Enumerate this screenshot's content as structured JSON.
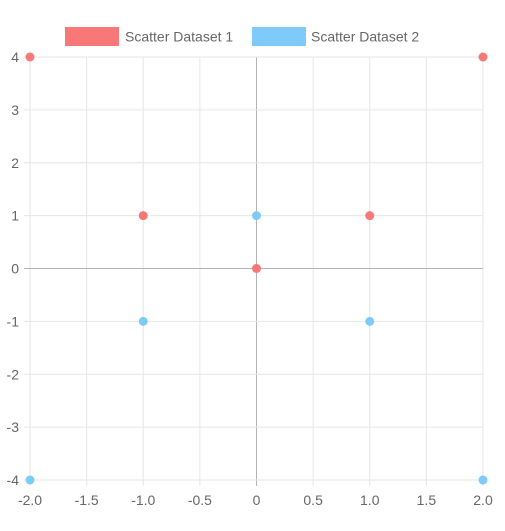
{
  "chart_data": {
    "type": "scatter",
    "legend_position": "top",
    "grid": true,
    "xlim": [
      -2,
      2
    ],
    "ylim": [
      -4,
      4
    ],
    "x_ticks": [
      "-2.0",
      "-1.5",
      "-1.0",
      "-0.5",
      "0",
      "0.5",
      "1.0",
      "1.5",
      "2.0"
    ],
    "y_ticks": [
      "4",
      "3",
      "2",
      "1",
      "0",
      "-1",
      "-2",
      "-3",
      "-4"
    ],
    "series": [
      {
        "name": "Scatter Dataset 1",
        "color": "#f87777",
        "points": [
          {
            "x": -2,
            "y": 4
          },
          {
            "x": -1,
            "y": 1
          },
          {
            "x": 0,
            "y": 0
          },
          {
            "x": 1,
            "y": 1
          },
          {
            "x": 2,
            "y": 4
          }
        ]
      },
      {
        "name": "Scatter Dataset 2",
        "color": "#7ecbf9",
        "points": [
          {
            "x": -2,
            "y": -4
          },
          {
            "x": -1,
            "y": -1
          },
          {
            "x": 0,
            "y": 1
          },
          {
            "x": 1,
            "y": -1
          },
          {
            "x": 2,
            "y": -4
          }
        ]
      }
    ]
  }
}
